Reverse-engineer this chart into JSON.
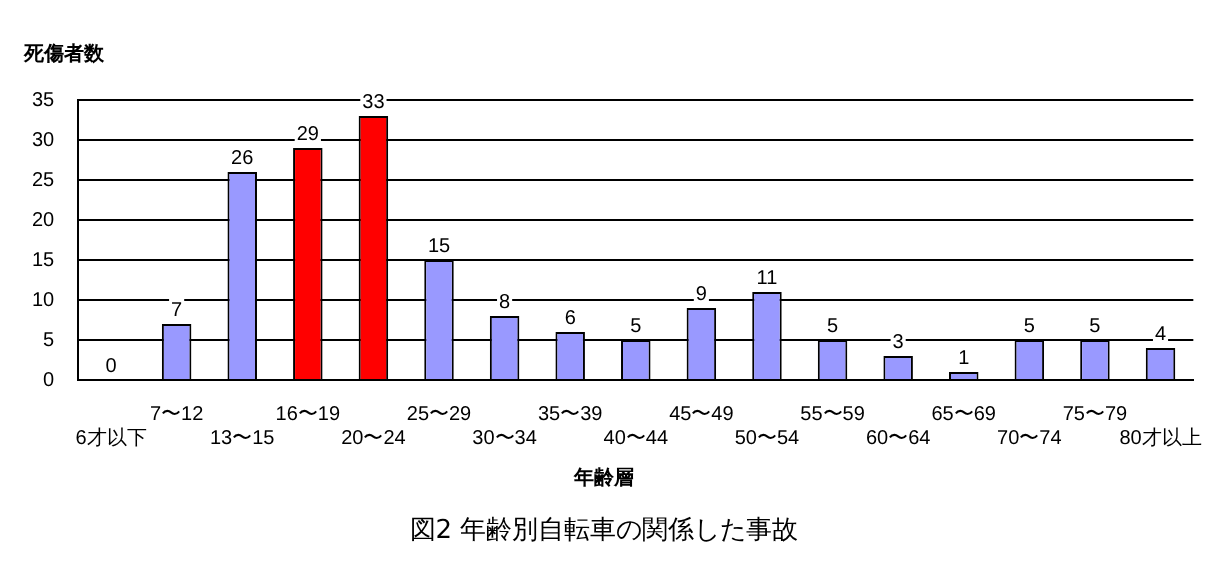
{
  "chart_data": {
    "type": "bar",
    "title": "図2 年齢別自転車の関係した事故",
    "xlabel": "年齢層",
    "ylabel": "死傷者数",
    "categories": [
      "6才以下",
      "7〜12",
      "13〜15",
      "16〜19",
      "20〜24",
      "25〜29",
      "30〜34",
      "35〜39",
      "40〜44",
      "45〜49",
      "50〜54",
      "55〜59",
      "60〜64",
      "65〜69",
      "70〜74",
      "75〜79",
      "80才以上"
    ],
    "values": [
      0,
      7,
      26,
      29,
      33,
      15,
      8,
      6,
      5,
      9,
      11,
      5,
      3,
      1,
      5,
      5,
      4
    ],
    "colors": [
      "#9999ff",
      "#9999ff",
      "#9999ff",
      "#ff0000",
      "#ff0000",
      "#9999ff",
      "#9999ff",
      "#9999ff",
      "#9999ff",
      "#9999ff",
      "#9999ff",
      "#9999ff",
      "#9999ff",
      "#9999ff",
      "#9999ff",
      "#9999ff",
      "#9999ff"
    ],
    "ylim": [
      0,
      35
    ],
    "yticks": [
      0,
      5,
      10,
      15,
      20,
      25,
      30,
      35
    ],
    "grid": "y",
    "data_labels": true,
    "legend": false
  }
}
